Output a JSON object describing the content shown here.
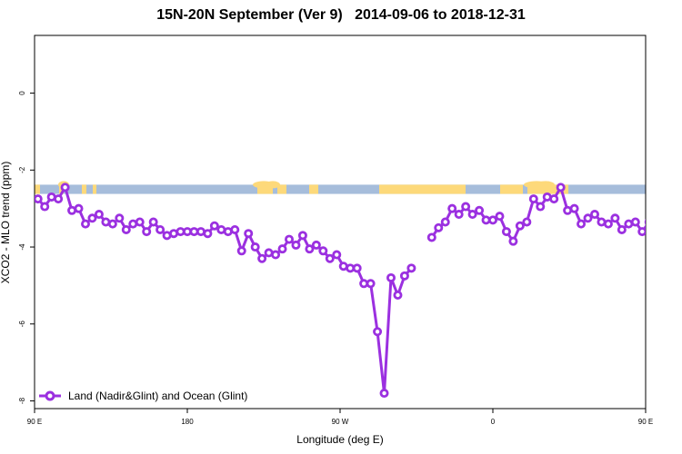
{
  "chart_data": {
    "type": "line",
    "title": "15N-20N September (Ver 9)   2014-09-06 to 2018-12-31",
    "xlabel": "Longitude (deg E)",
    "ylabel": "XCO2 - MLO trend (ppm)",
    "xlim": [
      90,
      450
    ],
    "ylim": [
      -8.2,
      1.5
    ],
    "x_ticks": [
      {
        "value": 90,
        "label": "90 E"
      },
      {
        "value": 180,
        "label": "180"
      },
      {
        "value": 270,
        "label": "90 W"
      },
      {
        "value": 360,
        "label": "0"
      },
      {
        "value": 450,
        "label": "90 E"
      },
      {
        "value": 540,
        "label": "180"
      }
    ],
    "y_ticks": [
      {
        "value": 0,
        "label": "0"
      },
      {
        "value": -2,
        "label": "-2"
      },
      {
        "value": -4,
        "label": "-4"
      },
      {
        "value": -6,
        "label": "-6"
      },
      {
        "value": -8,
        "label": "-8"
      }
    ],
    "map_band": {
      "y_top": -2.38,
      "y_bottom": -2.62,
      "ocean_color": "#a6bddb",
      "land_color": "#fdd97a"
    },
    "series": [
      {
        "name": "Land (Nadir&Glint) and Ocean (Glint)",
        "color": "#9b30e0",
        "segments": [
          [
            [
              92,
              -2.75
            ],
            [
              96,
              -2.95
            ],
            [
              100,
              -2.7
            ],
            [
              104,
              -2.75
            ],
            [
              108,
              -2.45
            ],
            [
              112,
              -3.05
            ],
            [
              116,
              -3.0
            ],
            [
              120,
              -3.4
            ],
            [
              124,
              -3.25
            ],
            [
              128,
              -3.15
            ],
            [
              132,
              -3.35
            ],
            [
              136,
              -3.4
            ],
            [
              140,
              -3.25
            ],
            [
              144,
              -3.55
            ],
            [
              148,
              -3.4
            ],
            [
              152,
              -3.35
            ],
            [
              156,
              -3.6
            ],
            [
              160,
              -3.35
            ],
            [
              164,
              -3.55
            ],
            [
              168,
              -3.7
            ],
            [
              172,
              -3.65
            ],
            [
              176,
              -3.6
            ],
            [
              180,
              -3.6
            ],
            [
              184,
              -3.6
            ],
            [
              188,
              -3.6
            ],
            [
              192,
              -3.65
            ],
            [
              196,
              -3.45
            ],
            [
              200,
              -3.55
            ],
            [
              204,
              -3.6
            ],
            [
              208,
              -3.55
            ],
            [
              212,
              -4.1
            ],
            [
              216,
              -3.65
            ],
            [
              220,
              -4.0
            ],
            [
              224,
              -4.3
            ],
            [
              228,
              -4.15
            ],
            [
              232,
              -4.2
            ],
            [
              236,
              -4.05
            ],
            [
              240,
              -3.8
            ],
            [
              244,
              -3.95
            ],
            [
              248,
              -3.7
            ],
            [
              252,
              -4.05
            ],
            [
              256,
              -3.95
            ],
            [
              260,
              -4.1
            ],
            [
              264,
              -4.3
            ],
            [
              268,
              -4.2
            ],
            [
              272,
              -4.5
            ],
            [
              276,
              -4.55
            ],
            [
              280,
              -4.55
            ],
            [
              284,
              -4.95
            ],
            [
              288,
              -4.95
            ],
            [
              292,
              -6.2
            ],
            [
              296,
              -7.8
            ],
            [
              300,
              -4.8
            ],
            [
              304,
              -5.25
            ],
            [
              308,
              -4.75
            ],
            [
              312,
              -4.55
            ]
          ],
          [
            [
              324,
              -3.75
            ],
            [
              328,
              -3.5
            ],
            [
              332,
              -3.35
            ],
            [
              336,
              -3.0
            ],
            [
              340,
              -3.15
            ],
            [
              344,
              -2.95
            ],
            [
              348,
              -3.15
            ],
            [
              352,
              -3.05
            ],
            [
              356,
              -3.3
            ],
            [
              360,
              -3.3
            ],
            [
              364,
              -3.2
            ],
            [
              368,
              -3.6
            ],
            [
              372,
              -3.85
            ],
            [
              376,
              -3.45
            ],
            [
              380,
              -3.35
            ],
            [
              384,
              -2.75
            ],
            [
              388,
              -2.95
            ],
            [
              392,
              -2.7
            ],
            [
              396,
              -2.75
            ],
            [
              400,
              -2.45
            ],
            [
              404,
              -3.05
            ],
            [
              408,
              -3.0
            ],
            [
              412,
              -3.4
            ],
            [
              416,
              -3.25
            ],
            [
              420,
              -3.15
            ],
            [
              424,
              -3.35
            ],
            [
              428,
              -3.4
            ],
            [
              432,
              -3.25
            ],
            [
              436,
              -3.55
            ],
            [
              440,
              -3.4
            ],
            [
              444,
              -3.35
            ],
            [
              448,
              -3.6
            ],
            [
              452,
              -3.35
            ]
          ]
        ]
      }
    ],
    "legend": {
      "position": "bottom-left",
      "label": "Land (Nadir&Glint) and Ocean (Glint)"
    }
  }
}
